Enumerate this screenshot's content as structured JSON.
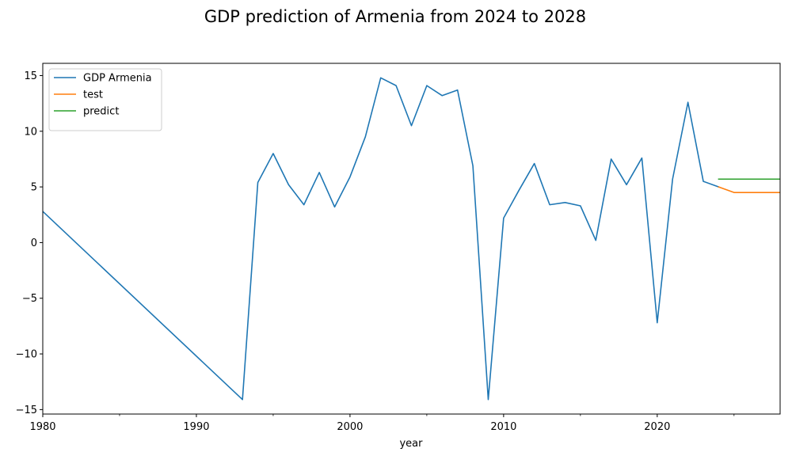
{
  "chart_data": {
    "type": "line",
    "title": "GDP prediction of Armenia from 2024 to 2028",
    "xlabel": "year",
    "ylabel": "",
    "xlim": [
      1980,
      2028
    ],
    "ylim": [
      -15.4,
      16.1
    ],
    "x_major_ticks": [
      1980,
      1990,
      2000,
      2010,
      2020
    ],
    "x_minor_ticks": [
      1985,
      1995,
      2005,
      2015,
      2025
    ],
    "y_ticks": [
      -15,
      -10,
      -5,
      0,
      5,
      10,
      15
    ],
    "grid": false,
    "legend_position": "upper-left",
    "series": [
      {
        "name": "GDP Armenia",
        "color": "#1f77b4",
        "points": [
          [
            1980,
            2.8
          ],
          [
            1993,
            -14.1
          ],
          [
            1994,
            5.4
          ],
          [
            1995,
            8.0
          ],
          [
            1996,
            5.2
          ],
          [
            1997,
            3.4
          ],
          [
            1998,
            6.3
          ],
          [
            1999,
            3.2
          ],
          [
            2000,
            5.9
          ],
          [
            2001,
            9.5
          ],
          [
            2002,
            14.8
          ],
          [
            2003,
            14.1
          ],
          [
            2004,
            10.5
          ],
          [
            2005,
            14.1
          ],
          [
            2006,
            13.2
          ],
          [
            2007,
            13.7
          ],
          [
            2008,
            6.9
          ],
          [
            2009,
            -14.1
          ],
          [
            2010,
            2.2
          ],
          [
            2011,
            4.7
          ],
          [
            2012,
            7.1
          ],
          [
            2013,
            3.4
          ],
          [
            2014,
            3.6
          ],
          [
            2015,
            3.3
          ],
          [
            2016,
            0.2
          ],
          [
            2017,
            7.5
          ],
          [
            2018,
            5.2
          ],
          [
            2019,
            7.6
          ],
          [
            2020,
            -7.2
          ],
          [
            2021,
            5.7
          ],
          [
            2022,
            12.6
          ],
          [
            2023,
            5.5
          ],
          [
            2024,
            5.0
          ]
        ]
      },
      {
        "name": "test",
        "color": "#ff7f0e",
        "points": [
          [
            2024,
            5.0
          ],
          [
            2025,
            4.5
          ],
          [
            2026,
            4.5
          ],
          [
            2027,
            4.5
          ],
          [
            2028,
            4.5
          ]
        ]
      },
      {
        "name": "predict",
        "color": "#2ca02c",
        "points": [
          [
            2024,
            5.7
          ],
          [
            2025,
            5.7
          ],
          [
            2026,
            5.7
          ],
          [
            2027,
            5.7
          ],
          [
            2028,
            5.7
          ]
        ]
      }
    ]
  }
}
